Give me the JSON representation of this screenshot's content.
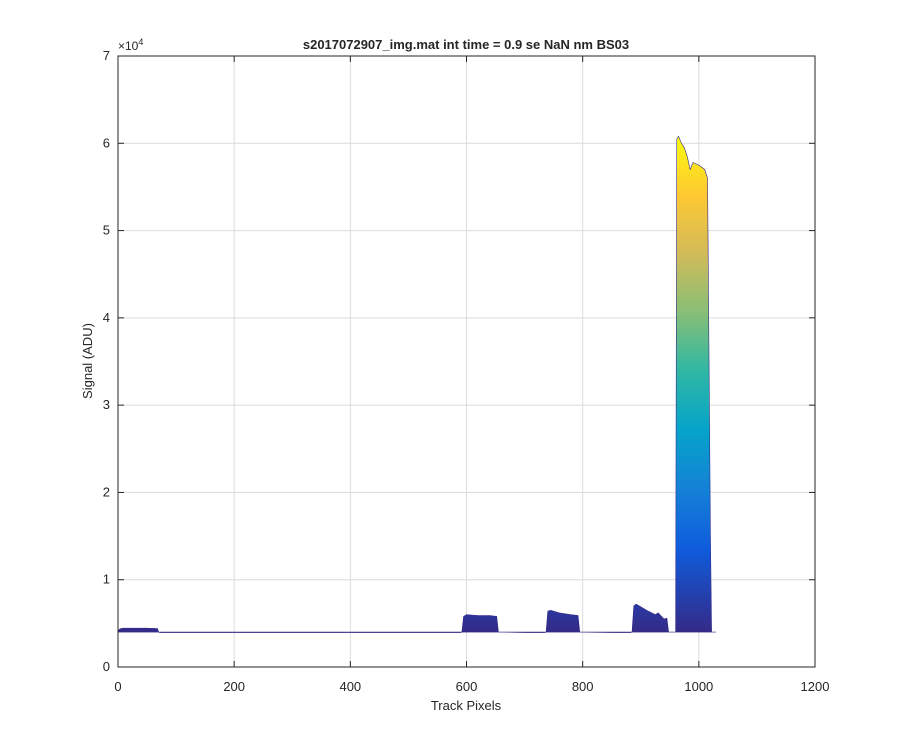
{
  "chart_data": {
    "type": "area",
    "title": "s2017072907_img.mat int time = 0.9 se  NaN nm BS03",
    "xlabel": "Track Pixels",
    "ylabel": "Signal (ADU)",
    "y_exponent_label": "×10",
    "y_exponent_power": "4",
    "xlim": [
      0,
      1200
    ],
    "ylim": [
      0,
      70000
    ],
    "x_ticks": [
      0,
      200,
      400,
      600,
      800,
      1000,
      1200
    ],
    "y_ticks": [
      0,
      10000,
      20000,
      30000,
      40000,
      50000,
      60000,
      70000
    ],
    "x_tick_labels": [
      "0",
      "200",
      "400",
      "600",
      "800",
      "1000",
      "1200"
    ],
    "y_tick_labels": [
      "0",
      "1",
      "2",
      "3",
      "4",
      "5",
      "6",
      "7"
    ],
    "grid": true,
    "baseline": 4000,
    "colormap": [
      "#352a87",
      "#0f5cdd",
      "#1481d6",
      "#06a4ca",
      "#2eb7a4",
      "#87bf77",
      "#d1bb59",
      "#fec832",
      "#f9fb0e"
    ],
    "x": [
      0,
      2,
      5,
      10,
      30,
      50,
      68,
      70,
      72,
      100,
      300,
      500,
      590,
      592,
      595,
      600,
      620,
      640,
      652,
      655,
      700,
      735,
      737,
      740,
      745,
      760,
      780,
      792,
      795,
      850,
      883,
      885,
      888,
      892,
      900,
      910,
      925,
      930,
      940,
      945,
      948,
      955,
      960,
      962,
      965,
      970,
      975,
      980,
      985,
      990,
      1000,
      1010,
      1015,
      1017,
      1020,
      1022,
      1030
    ],
    "y": [
      4000,
      4300,
      4400,
      4450,
      4450,
      4450,
      4400,
      4000,
      3950,
      3950,
      3950,
      3950,
      3950,
      4000,
      5800,
      6000,
      5900,
      5900,
      5800,
      4000,
      3950,
      3950,
      4000,
      6400,
      6500,
      6200,
      6000,
      5900,
      4000,
      3950,
      3950,
      4000,
      7000,
      7200,
      6900,
      6500,
      6000,
      6200,
      5500,
      5600,
      4000,
      4000,
      4000,
      60500,
      60800,
      60000,
      59500,
      58500,
      57000,
      57800,
      57500,
      57000,
      56000,
      40000,
      15000,
      4000,
      4000
    ]
  }
}
